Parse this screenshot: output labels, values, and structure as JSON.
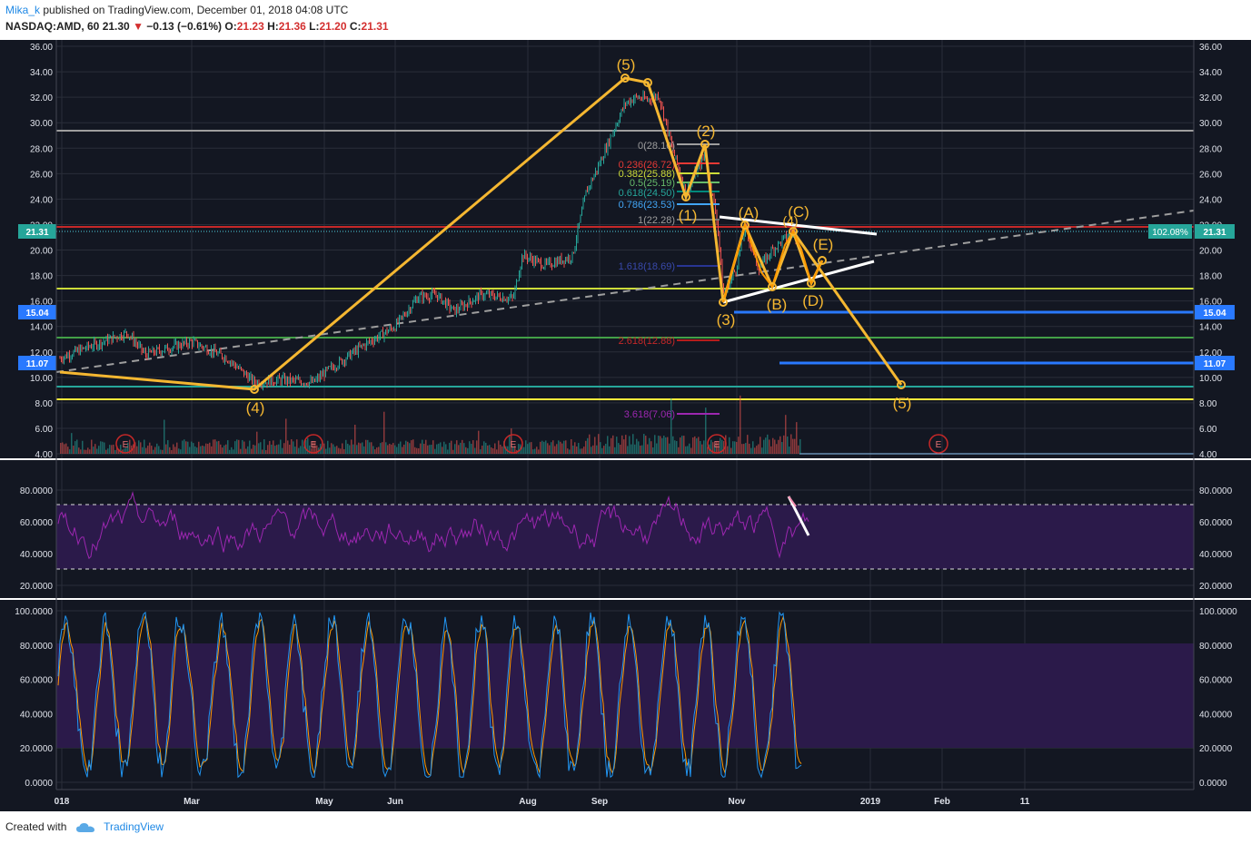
{
  "header": {
    "author": "Mika_k",
    "published_text": "published on TradingView.com, December 01, 2018 04:08 UTC",
    "symbol": "NASDAQ:AMD, 60",
    "last": "21.30",
    "change": "−0.13 (−0.61%)",
    "o_label": "O:",
    "o": "21.23",
    "h_label": "H:",
    "h": "21.36",
    "l_label": "L:",
    "l": "21.20",
    "c_label": "C:",
    "c": "21.31"
  },
  "footer": {
    "created_with": "Created with",
    "brand": "TradingView"
  },
  "colors": {
    "background": "#131722",
    "grid": "#2a2e39",
    "wave": "#f5b731",
    "rsi_band": "#2b1a4a",
    "rsi_line": "#9c27b0",
    "stoch_k": "#2196f3",
    "stoch_d": "#ff9800"
  },
  "price_axis": {
    "ticks": [
      "36.00",
      "34.00",
      "32.00",
      "30.00",
      "28.00",
      "26.00",
      "24.00",
      "22.00",
      "20.00",
      "18.00",
      "16.00",
      "14.00",
      "12.00",
      "10.00",
      "8.00",
      "6.00",
      "4.00"
    ],
    "current_price": "21.31",
    "percent_label": "102.08%",
    "level_15": "15.04",
    "level_11": "11.07"
  },
  "rsi_axis": {
    "ticks": [
      "80.0000",
      "60.0000",
      "40.0000",
      "20.0000"
    ]
  },
  "stoch_axis": {
    "ticks": [
      "100.0000",
      "80.0000",
      "60.0000",
      "40.0000",
      "20.0000",
      "0.0000"
    ]
  },
  "time_axis": {
    "labels": [
      "018",
      "Mar",
      "May",
      "Jun",
      "Aug",
      "Sep",
      "Nov",
      "2019",
      "Feb",
      "11"
    ]
  },
  "wave_labels": {
    "w5_top": "(5)",
    "w4": "(4)",
    "w1": "(1)",
    "w2": "(2)",
    "w3": "(3)",
    "w5_target": "(5)",
    "a": "(A)",
    "b": "(B)",
    "c": "(C)",
    "d": "(D)",
    "e": "(E)",
    "four": "(4)"
  },
  "fib_labels": {
    "f0": "0(28.10)",
    "f236": "0.236(26.72)",
    "f382": "0.382(25.88)",
    "f5": "0.5(25.19)",
    "f618": "0.618(24.50)",
    "f786": "0.786(23.53)",
    "f1": "1(22.28)",
    "f1618": "1.618(18.69)",
    "f2618": "2.618(12.88)",
    "f3618": "3.618(7.06)"
  },
  "earnings_marker": "E"
}
